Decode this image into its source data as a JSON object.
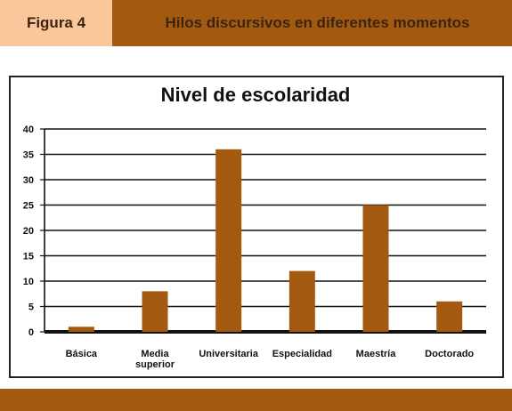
{
  "header": {
    "figure_label": "Figura 4",
    "title": "Hilos discursivos en diferentes momentos"
  },
  "colors": {
    "header_bar": "#a35a10",
    "figure_tab": "#f9c79a",
    "bar": "#a35a10",
    "axis": "#111111"
  },
  "chart_data": {
    "type": "bar",
    "title": "Nivel de escolaridad",
    "xlabel": "",
    "ylabel": "",
    "ylim": [
      0,
      40
    ],
    "yticks": [
      0,
      5,
      10,
      15,
      20,
      25,
      30,
      35,
      40
    ],
    "grid": true,
    "categories": [
      [
        "Básica"
      ],
      [
        "Media",
        "superior"
      ],
      [
        "Universitaria"
      ],
      [
        "Especialidad"
      ],
      [
        "Maestría"
      ],
      [
        "Doctorado"
      ]
    ],
    "values": [
      1,
      8,
      36,
      12,
      25,
      6
    ]
  }
}
